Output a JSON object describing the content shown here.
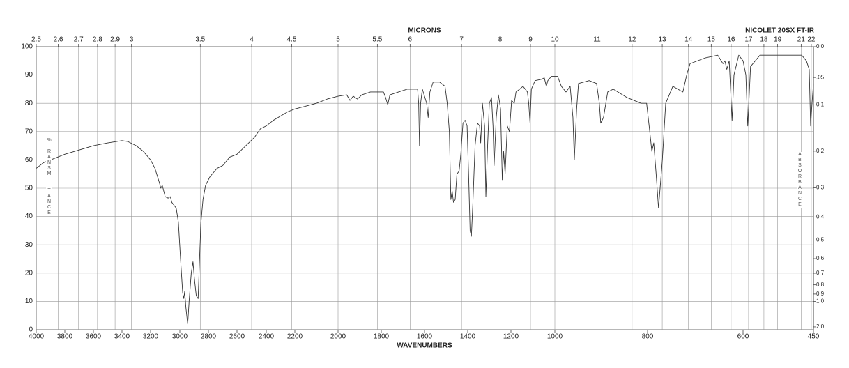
{
  "chart_data": {
    "type": "line",
    "title": "NICOLET 20SX FT-IR",
    "x_label": "WAVENUMBERS",
    "top_label": "MICRONS",
    "y_label": "%TRANSMITTANCE",
    "y2_label": "ABSORBANCE",
    "color": "#333333",
    "grid": true,
    "xlim": [
      4000,
      450
    ],
    "xticks": [
      4000,
      3800,
      3600,
      3400,
      3200,
      3000,
      2800,
      2600,
      2400,
      2200,
      2000,
      1800,
      1600,
      1400,
      1200,
      1000,
      800,
      600,
      450
    ],
    "ylim": [
      0,
      100
    ],
    "yticks": [
      0,
      10,
      20,
      30,
      40,
      50,
      60,
      70,
      80,
      90,
      100
    ],
    "top_ticks": [
      2.5,
      2.6,
      2.7,
      2.8,
      2.9,
      3,
      3.5,
      4,
      4.5,
      5,
      5.5,
      6,
      7,
      8,
      9,
      10,
      11,
      12,
      13,
      14,
      15,
      16,
      17,
      18,
      19,
      21,
      22
    ],
    "y2_scale": "absorbance",
    "y2ticks": [
      {
        "value": 0,
        "label": "0.0"
      },
      {
        "value": 0.05,
        "label": ".05"
      },
      0.1,
      0.2,
      0.3,
      0.4,
      0.5,
      0.6,
      0.7,
      0.8,
      0.9,
      {
        "value": 1,
        "label": "1.0"
      },
      {
        "value": 2,
        "label": "2.0"
      }
    ],
    "x": [
      4000,
      3950,
      3900,
      3800,
      3700,
      3600,
      3500,
      3400,
      3360,
      3300,
      3250,
      3200,
      3170,
      3140,
      3130,
      3120,
      3100,
      3080,
      3065,
      3055,
      3040,
      3025,
      3010,
      2995,
      2980,
      2972,
      2966,
      2958,
      2945,
      2935,
      2920,
      2908,
      2898,
      2885,
      2872,
      2862,
      2852,
      2838,
      2820,
      2790,
      2740,
      2700,
      2650,
      2600,
      2560,
      2520,
      2480,
      2440,
      2400,
      2350,
      2300,
      2250,
      2200,
      2150,
      2100,
      2050,
      2000,
      1960,
      1945,
      1930,
      1910,
      1890,
      1850,
      1790,
      1780,
      1770,
      1760,
      1720,
      1680,
      1632,
      1627,
      1623,
      1618,
      1610,
      1590,
      1583,
      1575,
      1560,
      1530,
      1505,
      1495,
      1485,
      1478,
      1472,
      1466,
      1458,
      1450,
      1440,
      1432,
      1422,
      1412,
      1403,
      1396,
      1389,
      1383,
      1376,
      1366,
      1355,
      1345,
      1340,
      1332,
      1322,
      1316,
      1308,
      1300,
      1290,
      1283,
      1278,
      1268,
      1258,
      1248,
      1240,
      1234,
      1227,
      1217,
      1207,
      1197,
      1185,
      1177,
      1160,
      1145,
      1125,
      1119,
      1113,
      1107,
      1090,
      1060,
      1048,
      1039,
      1032,
      1016,
      994,
      986,
      976,
      967,
      961,
      958,
      953,
      949,
      926,
      910,
      904,
      901,
      895,
      886,
      874,
      844,
      814,
      802,
      796,
      791,
      787,
      782,
      777,
      769,
      762,
      747,
      726,
      718,
      711,
      680,
      653,
      642,
      638,
      634,
      629,
      623,
      619,
      609,
      600,
      594,
      590,
      584,
      564,
      549,
      505,
      475,
      465,
      459,
      456,
      453,
      450
    ],
    "values": [
      57,
      59,
      60,
      62,
      63.5,
      65,
      66,
      66.8,
      66.5,
      65,
      63,
      60,
      57,
      52,
      50,
      51,
      47,
      46.5,
      47,
      45,
      44,
      43,
      38,
      25,
      13,
      11,
      13.5,
      8,
      2,
      10,
      20,
      24,
      18,
      12,
      11,
      25,
      38,
      46,
      51,
      54,
      57,
      58,
      61,
      62,
      64,
      66,
      68,
      71,
      72,
      74,
      75.5,
      77,
      78,
      79,
      80,
      81.5,
      82.5,
      83,
      81,
      82.5,
      81.5,
      83,
      84,
      84,
      82,
      79.5,
      83,
      84,
      85,
      85,
      80,
      65,
      80,
      85,
      80,
      75,
      84,
      87.5,
      87.5,
      86,
      80,
      70,
      46,
      49,
      45,
      46,
      55,
      56,
      62,
      73,
      74,
      72,
      55,
      35,
      33,
      45,
      65,
      73,
      72,
      66,
      80,
      72,
      47,
      65,
      80,
      82,
      72,
      58,
      75,
      83,
      78,
      53,
      63,
      55,
      72,
      70,
      81,
      80,
      84,
      85,
      86,
      84,
      80,
      73,
      85,
      88,
      88.5,
      89,
      86,
      88,
      89.5,
      89.5,
      86,
      84,
      86,
      75,
      60,
      78,
      87,
      88,
      87,
      80,
      73,
      75,
      84,
      85,
      82,
      80,
      80,
      71,
      63,
      66,
      55,
      43,
      60,
      80,
      86,
      84,
      90,
      94,
      96,
      97,
      94,
      95,
      92,
      95,
      74,
      90,
      97,
      95,
      90,
      72,
      93,
      97,
      97,
      97,
      97,
      95,
      92,
      72,
      80,
      87
    ]
  }
}
